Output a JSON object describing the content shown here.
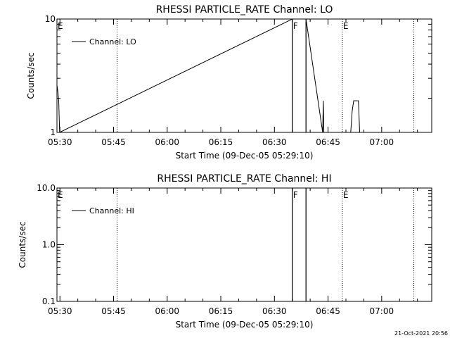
{
  "chart_data": [
    {
      "type": "line",
      "title": "RHESSI PARTICLE_RATE Channel: LO",
      "xlabel": "Start Time (09-Dec-05 05:29:10)",
      "ylabel": "Counts/sec",
      "y_scale": "log",
      "ylim": [
        1,
        10
      ],
      "y_ticks": [
        1,
        10
      ],
      "y_tick_labels": [
        "1",
        "10"
      ],
      "xlim": [
        "05:29:10",
        "07:14:00"
      ],
      "x_ticks": [
        "05:30",
        "05:45",
        "06:00",
        "06:15",
        "06:30",
        "06:45",
        "07:00"
      ],
      "grid": false,
      "legend": {
        "position": "top-left",
        "entries": [
          "Channel: LO"
        ]
      },
      "series": [
        {
          "name": "Channel: LO",
          "points": [
            [
              "05:29:10",
              2.6
            ],
            [
              "05:29:25",
              2.3
            ],
            [
              "05:29:40",
              1.9
            ],
            [
              "05:29:55",
              1.0
            ],
            [
              "06:35:00",
              10.0
            ],
            [
              "06:35:00",
              0.9
            ],
            [
              "06:38:50",
              0.9
            ],
            [
              "06:38:50",
              10.0
            ],
            [
              "06:43:30",
              1.0
            ],
            [
              "06:43:40",
              1.9
            ],
            [
              "06:43:50",
              1.0
            ],
            [
              "06:51:20",
              1.0
            ],
            [
              "06:51:45",
              1.55
            ],
            [
              "06:52:10",
              1.9
            ],
            [
              "06:53:30",
              1.9
            ],
            [
              "06:53:50",
              1.0
            ]
          ]
        }
      ],
      "vertical_markers": [
        {
          "time": "05:29:10",
          "label": "E",
          "style": "solid"
        },
        {
          "time": "05:46:00",
          "label": "",
          "style": "dotted"
        },
        {
          "time": "06:35:00",
          "label": "F",
          "style": "solid"
        },
        {
          "time": "06:38:50",
          "label": "",
          "style": "solid"
        },
        {
          "time": "06:49:00",
          "label": "E",
          "style": "dotted"
        },
        {
          "time": "07:09:00",
          "label": "",
          "style": "dotted"
        }
      ]
    },
    {
      "type": "line",
      "title": "RHESSI PARTICLE_RATE Channel: HI",
      "xlabel": "Start Time (09-Dec-05 05:29:10)",
      "ylabel": "Counts/sec",
      "y_scale": "log",
      "ylim": [
        0.1,
        10
      ],
      "y_ticks": [
        0.1,
        1,
        10
      ],
      "y_tick_labels": [
        "0.1",
        "1.0",
        "10.0"
      ],
      "xlim": [
        "05:29:10",
        "07:14:00"
      ],
      "x_ticks": [
        "05:30",
        "05:45",
        "06:00",
        "06:15",
        "06:30",
        "06:45",
        "07:00"
      ],
      "grid": false,
      "legend": {
        "position": "top-left",
        "entries": [
          "Channel: HI"
        ]
      },
      "series": [
        {
          "name": "Channel: HI",
          "points": [
            [
              "06:35:00",
              10.0
            ],
            [
              "06:35:00",
              0.09
            ],
            [
              "06:38:50",
              0.09
            ],
            [
              "06:38:50",
              10.0
            ]
          ]
        }
      ],
      "vertical_markers": [
        {
          "time": "05:29:10",
          "label": "E",
          "style": "solid"
        },
        {
          "time": "05:46:00",
          "label": "",
          "style": "dotted"
        },
        {
          "time": "06:35:00",
          "label": "F",
          "style": "solid"
        },
        {
          "time": "06:38:50",
          "label": "",
          "style": "solid"
        },
        {
          "time": "06:49:00",
          "label": "E",
          "style": "dotted"
        },
        {
          "time": "07:09:00",
          "label": "",
          "style": "dotted"
        }
      ]
    }
  ],
  "footer": {
    "timestamp": "21-Oct-2021 20:56"
  }
}
